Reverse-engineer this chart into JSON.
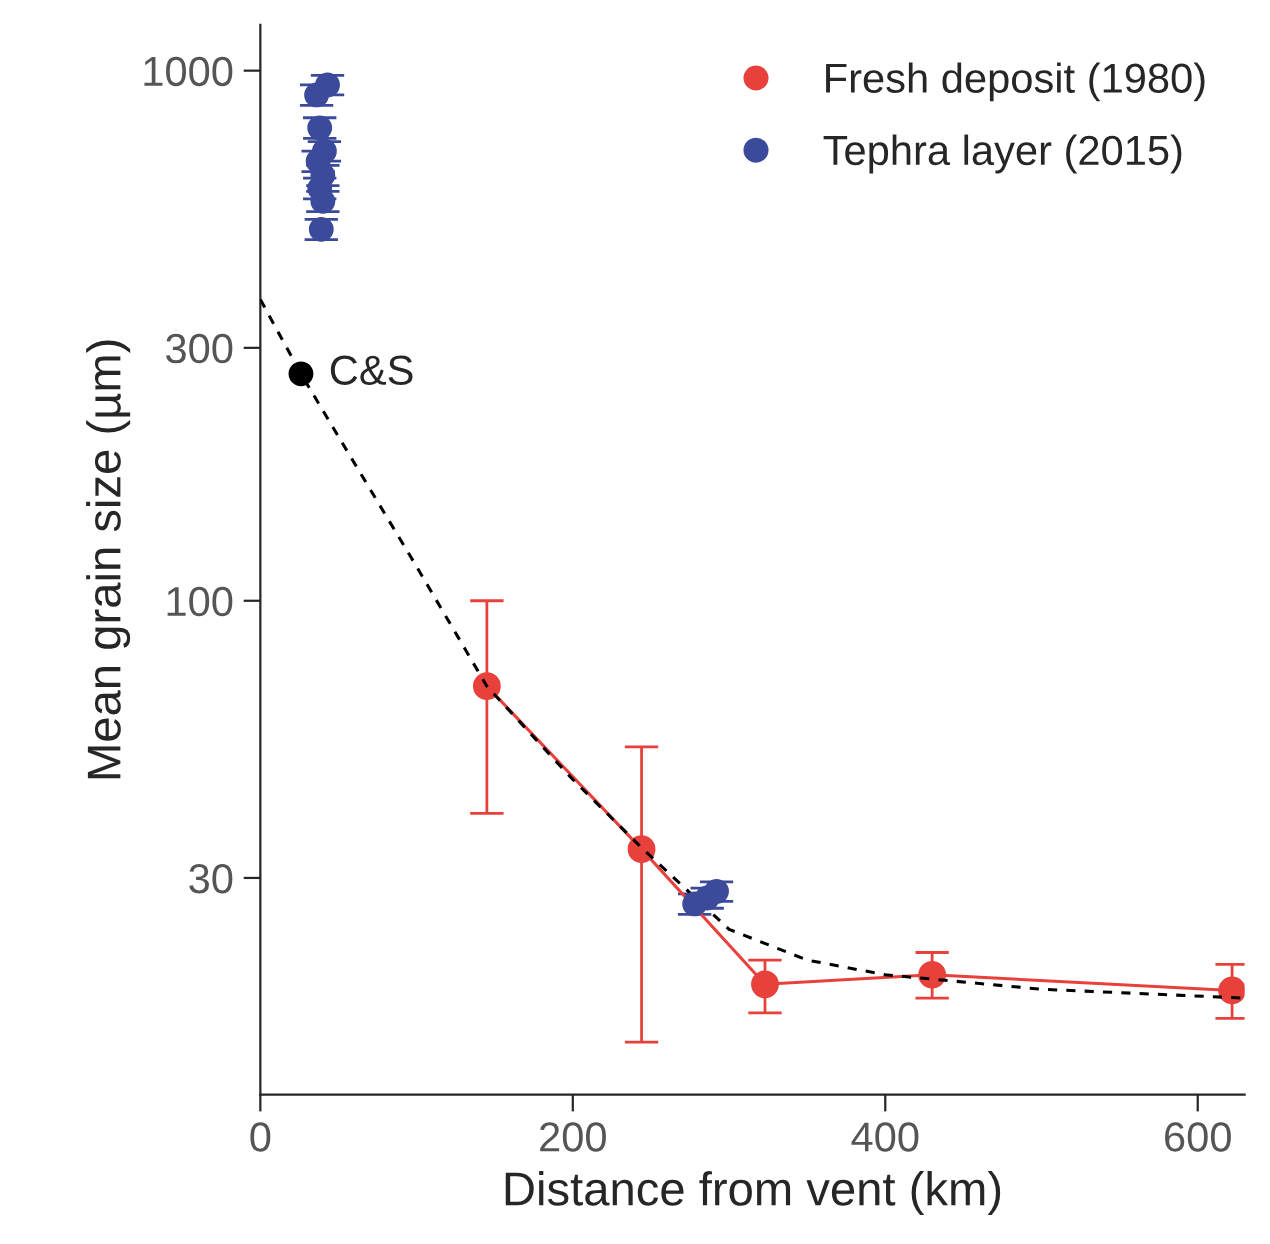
{
  "chart_data": {
    "type": "scatter",
    "xlabel": "Distance from vent (km)",
    "ylabel": "Mean grain size (µm)",
    "log": "y",
    "xlim": [
      0,
      630
    ],
    "ylim": [
      11.7,
      1220
    ],
    "xticks": [
      0,
      200,
      400,
      600
    ],
    "yticks": [
      30,
      100,
      300,
      1000
    ],
    "grid": false,
    "legend": "top right",
    "marker": "circle",
    "series": [
      {
        "name": "Fresh deposit (1980)",
        "type": "line",
        "color": "#e8413c",
        "line_style": "solid",
        "x": [
          145,
          244,
          323,
          430,
          622
        ],
        "values": [
          69,
          34,
          18.9,
          19.7,
          18.4
        ],
        "errors": [
          [
            39.7,
            100
          ],
          [
            14.7,
            53
          ],
          [
            16.7,
            21
          ],
          [
            17.8,
            21.7
          ],
          [
            16.3,
            20.6
          ]
        ]
      },
      {
        "name": "Tephra layer (2015)",
        "type": "scatter",
        "color": "#3b4a9a",
        "x": [
          36,
          43,
          38,
          41,
          37,
          40,
          38,
          40,
          39,
          278,
          286,
          292
        ],
        "values": [
          900,
          940,
          780,
          705,
          675,
          635,
          600,
          567,
          502,
          26.8,
          27.5,
          28.3
        ],
        "errors": [
          40,
          40,
          35,
          30,
          30,
          28,
          27,
          25,
          22,
          1.2,
          1.2,
          1.2
        ]
      },
      {
        "color": "#000000",
        "x": [
          26
        ],
        "values": [
          268
        ]
      },
      {
        "type": "line",
        "color": "#000000",
        "line_style": "dashed",
        "marker": "none",
        "x": [
          0,
          26,
          50,
          100,
          145,
          200,
          245,
          300,
          350,
          400,
          500,
          630
        ],
        "values": [
          370,
          268,
          204,
          116,
          69,
          46,
          34,
          24,
          21,
          19.7,
          18.5,
          17.8
        ]
      }
    ],
    "annotations": [
      {
        "text": "C&S",
        "x": 26,
        "y": 268
      }
    ]
  }
}
